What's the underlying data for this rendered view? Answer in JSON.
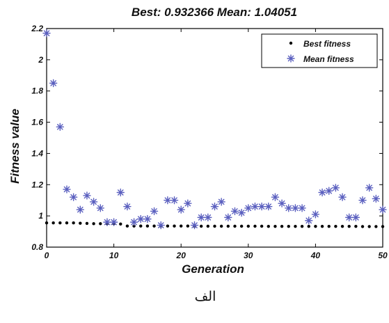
{
  "chart_data": {
    "type": "scatter",
    "title": "Best: 0.932366 Mean: 1.04051",
    "xlabel": "Generation",
    "ylabel": "Fitness value",
    "xlim": [
      0,
      50
    ],
    "ylim": [
      0.8,
      2.2
    ],
    "xticks": [
      "0",
      "10",
      "20",
      "30",
      "40",
      "50"
    ],
    "yticks": [
      "0.8",
      "1",
      "1.2",
      "1.4",
      "1.6",
      "1.8",
      "2",
      "2.2"
    ],
    "grid": false,
    "legend": "top-right",
    "series": [
      {
        "name": "Best fitness",
        "marker": "dot",
        "color": "#000000",
        "x": [
          0,
          1,
          2,
          3,
          4,
          5,
          6,
          7,
          8,
          9,
          10,
          11,
          12,
          13,
          14,
          15,
          16,
          17,
          18,
          19,
          20,
          21,
          22,
          23,
          24,
          25,
          26,
          27,
          28,
          29,
          30,
          31,
          32,
          33,
          34,
          35,
          36,
          37,
          38,
          39,
          40,
          41,
          42,
          43,
          44,
          45,
          46,
          47,
          48,
          49,
          50
        ],
        "y": [
          0.955,
          0.955,
          0.955,
          0.955,
          0.955,
          0.953,
          0.952,
          0.95,
          0.95,
          0.95,
          0.95,
          0.948,
          0.935,
          0.935,
          0.935,
          0.935,
          0.935,
          0.935,
          0.935,
          0.935,
          0.935,
          0.935,
          0.934,
          0.934,
          0.934,
          0.934,
          0.934,
          0.934,
          0.934,
          0.934,
          0.934,
          0.934,
          0.934,
          0.933,
          0.933,
          0.933,
          0.933,
          0.933,
          0.933,
          0.933,
          0.933,
          0.933,
          0.933,
          0.933,
          0.933,
          0.933,
          0.933,
          0.932,
          0.932,
          0.932,
          0.932
        ]
      },
      {
        "name": "Mean fitness",
        "marker": "asterisk",
        "color": "#5a5fbf",
        "x": [
          0,
          1,
          2,
          3,
          4,
          5,
          6,
          7,
          8,
          9,
          10,
          11,
          12,
          13,
          14,
          15,
          16,
          17,
          18,
          19,
          20,
          21,
          22,
          23,
          24,
          25,
          26,
          27,
          28,
          29,
          30,
          31,
          32,
          33,
          34,
          35,
          36,
          37,
          38,
          39,
          40,
          41,
          42,
          43,
          44,
          45,
          46,
          47,
          48,
          49,
          50
        ],
        "y": [
          2.17,
          1.85,
          1.57,
          1.17,
          1.12,
          1.04,
          1.13,
          1.09,
          1.05,
          0.96,
          0.96,
          1.15,
          1.06,
          0.96,
          0.98,
          0.98,
          1.03,
          0.94,
          1.1,
          1.1,
          1.04,
          1.08,
          0.94,
          0.99,
          0.99,
          1.06,
          1.09,
          0.99,
          1.03,
          1.02,
          1.05,
          1.06,
          1.06,
          1.06,
          1.12,
          1.08,
          1.05,
          1.05,
          1.05,
          0.97,
          1.01,
          1.15,
          1.16,
          1.18,
          1.12,
          0.99,
          0.99,
          1.1,
          1.18,
          1.11,
          1.04
        ]
      }
    ]
  },
  "caption": "الف"
}
